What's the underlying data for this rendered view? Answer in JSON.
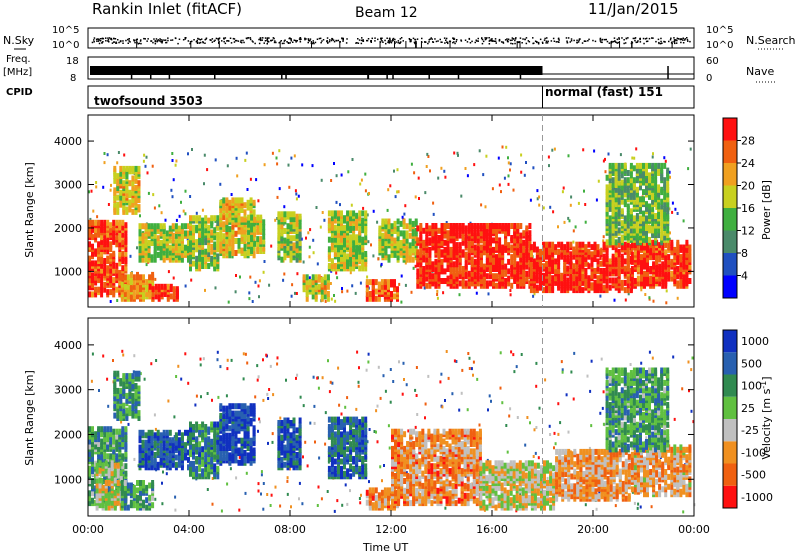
{
  "header": {
    "station": "Rankin Inlet (fitACF)",
    "beam": "Beam 12",
    "date": "11/Jan/2015"
  },
  "strip_labels": {
    "nsky": "N.Sky",
    "nsky_tick_top": "10^5",
    "nsky_tick_bottom": "10^0",
    "nsearch": "N.Search",
    "nsearch_tick_top": "10^5",
    "nsearch_tick_bottom": "10^0",
    "freq_line1": "Freq.",
    "freq_line2": "[MHz]",
    "freq_tick_top": "18",
    "freq_tick_bottom": "8",
    "nave": "Nave",
    "nave_tick_top": "60",
    "nave_tick_bottom": "0",
    "cpid": "CPID",
    "cpid_mode1": "twofsound 3503",
    "cpid_mode2": "normal (fast) 151"
  },
  "colors": {
    "power_scale": [
      "#0000ff",
      "#2050c0",
      "#4a8a6a",
      "#3faf3f",
      "#c8d020",
      "#f0a020",
      "#f06010",
      "#ff1010"
    ],
    "velocity_scale": [
      "#1030c0",
      "#2860b0",
      "#308a50",
      "#60c040",
      "#c0c0c0",
      "#f09020",
      "#f06010",
      "#ff1010"
    ],
    "ground_scatter": "#b0b0b0"
  },
  "chart_data": [
    {
      "type": "heatmap",
      "name": "power-panel",
      "ylabel": "Slant Range [km]",
      "yticks": [
        "1000",
        "2000",
        "3000",
        "4000"
      ],
      "ylim": [
        180,
        4600
      ],
      "xlim_hours": [
        0,
        24
      ],
      "colorbar_label": "Power [dB]",
      "colorbar_ticks": [
        "4",
        "8",
        "12",
        "16",
        "20",
        "24",
        "28"
      ],
      "colorbar_range": [
        0,
        32
      ],
      "regions": [
        {
          "t0": 0.0,
          "t1": 1.5,
          "r0": 400,
          "r1": 2100,
          "level": 0.85
        },
        {
          "t0": 1.0,
          "t1": 2.0,
          "r0": 2300,
          "r1": 3300,
          "level": 0.6
        },
        {
          "t0": 1.3,
          "t1": 2.6,
          "r0": 300,
          "r1": 900,
          "level": 0.7
        },
        {
          "t0": 2.4,
          "t1": 3.6,
          "r0": 300,
          "r1": 600,
          "level": 0.9
        },
        {
          "t0": 2.0,
          "t1": 4.0,
          "r0": 1200,
          "r1": 2000,
          "level": 0.55
        },
        {
          "t0": 4.0,
          "t1": 5.2,
          "r0": 1000,
          "r1": 2200,
          "level": 0.5
        },
        {
          "t0": 5.2,
          "t1": 6.6,
          "r0": 1300,
          "r1": 2600,
          "level": 0.6
        },
        {
          "t0": 6.3,
          "t1": 7.0,
          "r0": 1400,
          "r1": 2200,
          "level": 0.55
        },
        {
          "t0": 7.5,
          "t1": 8.4,
          "r0": 1200,
          "r1": 2300,
          "level": 0.5
        },
        {
          "t0": 8.5,
          "t1": 9.5,
          "r0": 300,
          "r1": 800,
          "level": 0.6
        },
        {
          "t0": 9.5,
          "t1": 11.0,
          "r0": 1000,
          "r1": 2300,
          "level": 0.55
        },
        {
          "t0": 11.0,
          "t1": 12.3,
          "r0": 300,
          "r1": 700,
          "level": 0.8
        },
        {
          "t0": 11.5,
          "t1": 13.0,
          "r0": 1200,
          "r1": 2100,
          "level": 0.55
        },
        {
          "t0": 13.0,
          "t1": 17.5,
          "r0": 600,
          "r1": 2000,
          "level": 0.93
        },
        {
          "t0": 17.5,
          "t1": 21.5,
          "r0": 500,
          "r1": 1600,
          "level": 0.92
        },
        {
          "t0": 21.5,
          "t1": 23.8,
          "r0": 600,
          "r1": 1600,
          "level": 0.9
        },
        {
          "t0": 20.5,
          "t1": 23.0,
          "r0": 1600,
          "r1": 3400,
          "level": 0.45
        }
      ]
    },
    {
      "type": "heatmap",
      "name": "velocity-panel",
      "xlabel": "Time UT",
      "ylabel": "Slant Range [km]",
      "yticks": [
        "1000",
        "2000",
        "3000",
        "4000"
      ],
      "ylim": [
        180,
        4600
      ],
      "xlim_hours": [
        0,
        24
      ],
      "xticks": [
        "00:00",
        "04:00",
        "08:00",
        "12:00",
        "16:00",
        "20:00",
        "00:00"
      ],
      "colorbar_label": "Velocity [m s^-1]",
      "colorbar_ticks": [
        "1000",
        "500",
        "100",
        "25",
        "-25",
        "-100",
        "-500",
        "-1000"
      ],
      "regions": [
        {
          "t0": 0.0,
          "t1": 1.5,
          "r0": 400,
          "r1": 2100,
          "level": 0.35
        },
        {
          "t0": 0.3,
          "t1": 1.3,
          "r0": 300,
          "r1": 1300,
          "level": 0.55
        },
        {
          "t0": 1.0,
          "t1": 2.0,
          "r0": 2300,
          "r1": 3300,
          "level": 0.3
        },
        {
          "t0": 1.3,
          "t1": 2.6,
          "r0": 300,
          "r1": 900,
          "level": 0.35
        },
        {
          "t0": 2.0,
          "t1": 4.0,
          "r0": 1200,
          "r1": 2000,
          "level": 0.15
        },
        {
          "t0": 4.0,
          "t1": 5.2,
          "r0": 1000,
          "r1": 2200,
          "level": 0.25
        },
        {
          "t0": 5.2,
          "t1": 6.6,
          "r0": 1300,
          "r1": 2600,
          "level": 0.1
        },
        {
          "t0": 7.5,
          "t1": 8.4,
          "r0": 1200,
          "r1": 2300,
          "level": 0.15
        },
        {
          "t0": 9.5,
          "t1": 11.0,
          "r0": 1000,
          "r1": 2300,
          "level": 0.2
        },
        {
          "t0": 11.0,
          "t1": 12.3,
          "r0": 300,
          "r1": 700,
          "level": 0.75
        },
        {
          "t0": 12.0,
          "t1": 15.5,
          "r0": 400,
          "r1": 2000,
          "level": 0.72
        },
        {
          "t0": 15.5,
          "t1": 18.5,
          "r0": 300,
          "r1": 1300,
          "level": 0.55
        },
        {
          "t0": 18.5,
          "t1": 21.5,
          "r0": 500,
          "r1": 1600,
          "level": 0.7
        },
        {
          "t0": 21.5,
          "t1": 23.8,
          "r0": 600,
          "r1": 1700,
          "level": 0.65
        },
        {
          "t0": 20.5,
          "t1": 23.0,
          "r0": 1600,
          "r1": 3400,
          "level": 0.35
        }
      ]
    }
  ],
  "mode_change_hours": 18.0
}
